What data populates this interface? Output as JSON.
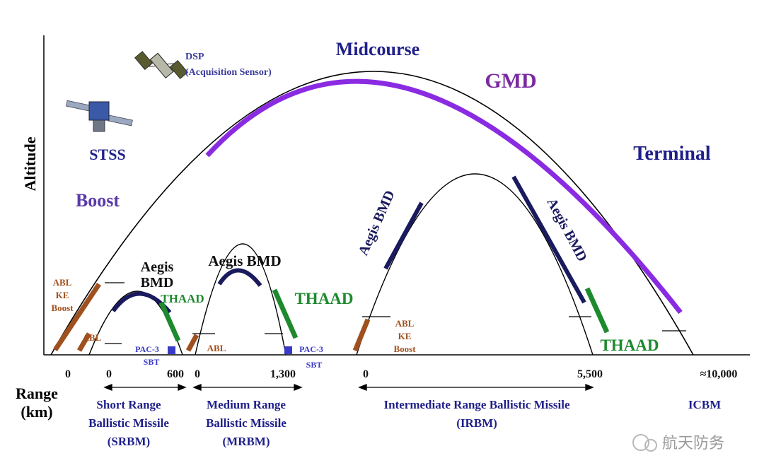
{
  "axes": {
    "y_label": "Altitude",
    "x_label_line1": "Range",
    "x_label_line2": "(km)"
  },
  "phases": {
    "boost": "Boost",
    "midcourse": "Midcourse",
    "terminal": "Terminal"
  },
  "sensors": {
    "stss": "STSS",
    "dsp_line1": "DSP",
    "dsp_line2": "(Acquisition Sensor)"
  },
  "systems": {
    "gmd": "GMD",
    "aegis_srbm_line1": "Aegis",
    "aegis_srbm_line2": "BMD",
    "aegis_mrbm": "Aegis BMD",
    "aegis_irbm_ascent": "Aegis BMD",
    "aegis_irbm_descent": "Aegis BMD",
    "thaad_srbm": "THAAD",
    "thaad_mrbm": "THAAD",
    "thaad_irbm": "THAAD",
    "abl_ke_boost_left": [
      "ABL",
      "KE",
      "Boost"
    ],
    "abl_srbm": "ABL",
    "abl_mrbm": "ABL",
    "abl_ke_boost_irbm": [
      "ABL",
      "KE",
      "Boost"
    ],
    "pac3_srbm": [
      "PAC-3",
      "SBT"
    ],
    "pac3_mrbm": [
      "PAC-3",
      "SBT"
    ]
  },
  "ticks": {
    "t0a": "0",
    "t0b": "0",
    "t600": "600",
    "t0c": "0",
    "t1300": "1,300",
    "t0d": "0",
    "t5500": "5,500",
    "t10000": "≈10,000"
  },
  "ranges": {
    "srbm": [
      "Short Range",
      "Ballistic Missile",
      "(SRBM)"
    ],
    "mrbm": [
      "Medium Range",
      "Ballistic Missile",
      "(MRBM)"
    ],
    "irbm": [
      "Intermediate Range Ballistic Missile",
      "(IRBM)"
    ],
    "icbm": "ICBM"
  },
  "watermark": "航天防务",
  "colors": {
    "aegis": "#1a1a5e",
    "gmd": "#8a2be2",
    "thaad": "#1e8a2e",
    "abl": "#a0501e",
    "pac3": "#3a3ac8",
    "title_blue": "#1f1f8a",
    "phase_purple": "#5a3aa8",
    "gmd_text": "#7a2aa0",
    "axis": "#000000"
  }
}
